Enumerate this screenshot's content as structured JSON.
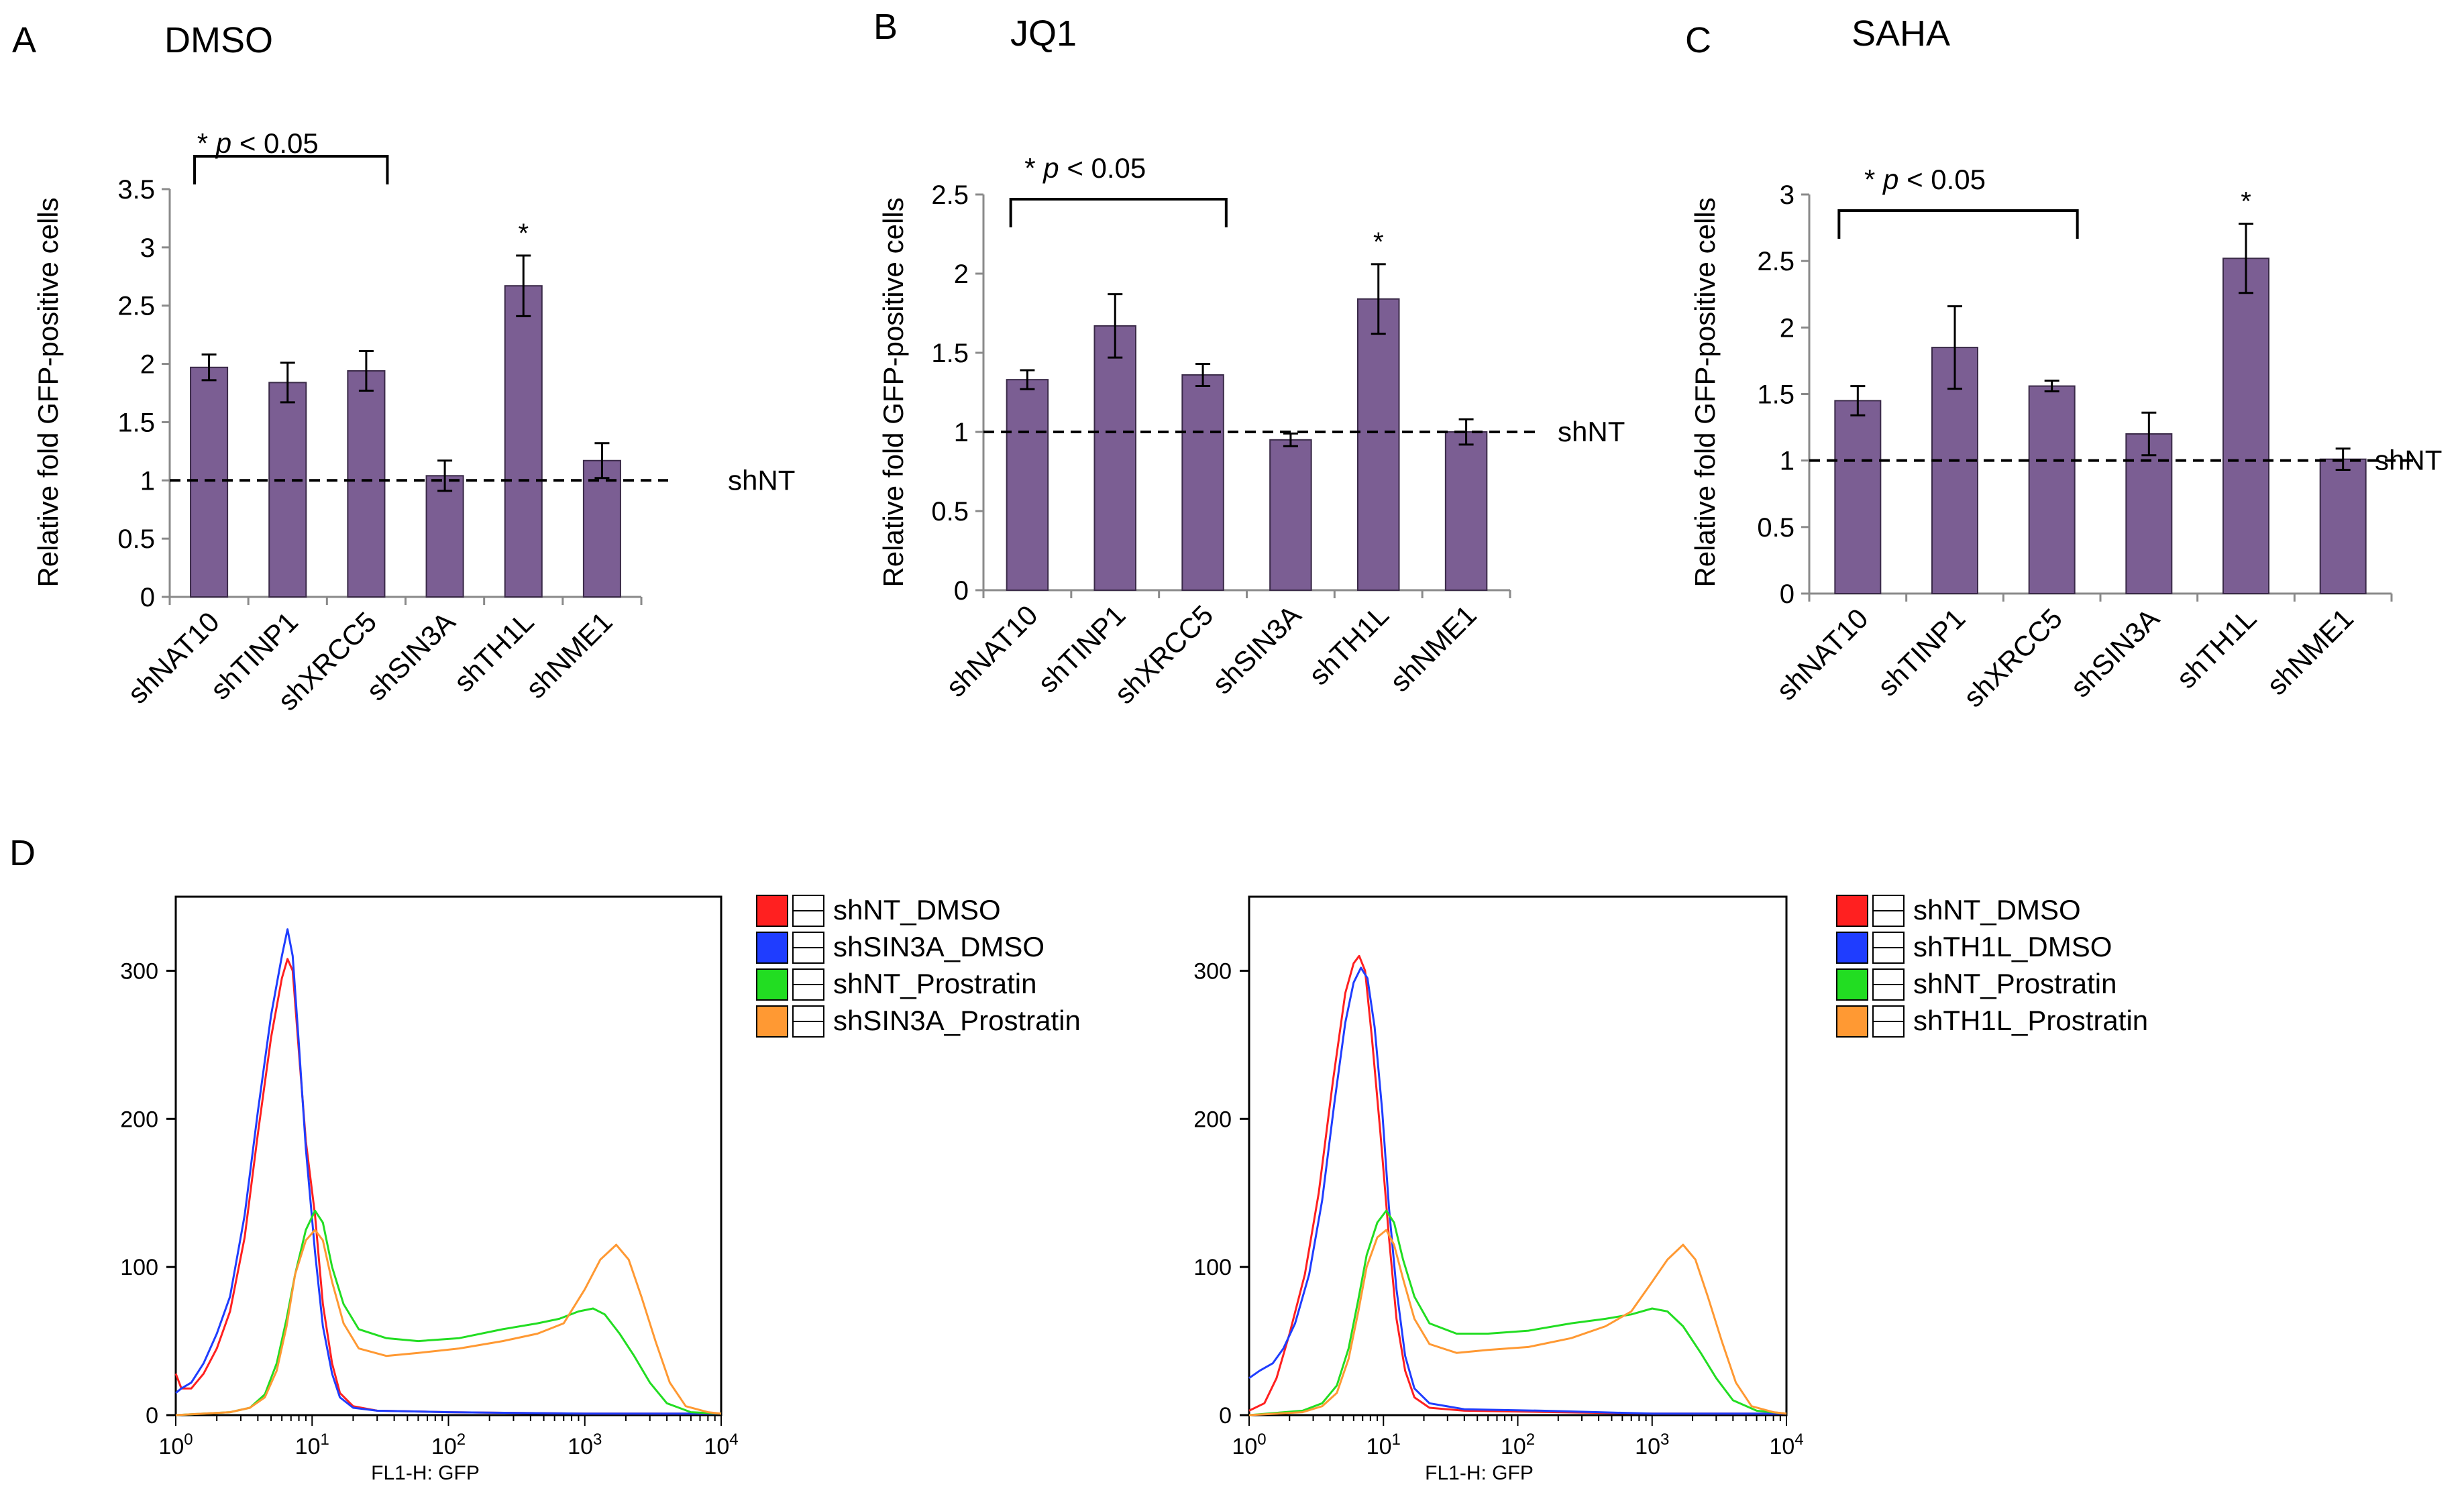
{
  "figure": {
    "panel_d_letter": "D"
  },
  "chart_data": [
    {
      "type": "bar",
      "panel": "A",
      "title": "DMSO",
      "ylabel": "Relative fold GFP-positive cells",
      "xlabel": "",
      "categories": [
        "shNAT10",
        "shTINP1",
        "shXRCC5",
        "shSIN3A",
        "shTH1L",
        "shNME1"
      ],
      "values": [
        1.97,
        1.84,
        1.94,
        1.04,
        2.67,
        1.17
      ],
      "errors": [
        0.11,
        0.17,
        0.17,
        0.13,
        0.26,
        0.15
      ],
      "ylim": [
        0,
        3.5
      ],
      "yticks": [
        0,
        0.5,
        1,
        1.5,
        2,
        2.5,
        3,
        3.5
      ],
      "ytick_labels": [
        "0",
        "0.5",
        "1",
        "1.5",
        "2",
        "2.5",
        "3",
        "3.5"
      ],
      "reference_line": {
        "value": 1,
        "label": "shNT"
      },
      "significance": {
        "from": 0,
        "to": 2,
        "star": "*",
        "italic_p": "p",
        "text": "< 0.05"
      },
      "star_over": [
        {
          "index": 4,
          "label": "*"
        }
      ],
      "bar_color": "#7b5e93"
    },
    {
      "type": "bar",
      "panel": "B",
      "title": "JQ1",
      "ylabel": "Relative fold GFP-positive cells",
      "xlabel": "",
      "categories": [
        "shNAT10",
        "shTINP1",
        "shXRCC5",
        "shSIN3A",
        "shTH1L",
        "shNME1"
      ],
      "values": [
        1.33,
        1.67,
        1.36,
        0.95,
        1.84,
        1.0
      ],
      "errors": [
        0.06,
        0.2,
        0.07,
        0.04,
        0.22,
        0.08
      ],
      "ylim": [
        0,
        2.5
      ],
      "yticks": [
        0,
        0.5,
        1,
        1.5,
        2,
        2.5
      ],
      "ytick_labels": [
        "0",
        "0.5",
        "1",
        "1.5",
        "2",
        "2.5"
      ],
      "reference_line": {
        "value": 1,
        "label": "shNT"
      },
      "significance": {
        "from": 0,
        "to": 2,
        "star": "*",
        "italic_p": "p",
        "text": "< 0.05"
      },
      "star_over": [
        {
          "index": 4,
          "label": "*"
        }
      ],
      "bar_color": "#7b5e93"
    },
    {
      "type": "bar",
      "panel": "C",
      "title": "SAHA",
      "ylabel": "Relative fold GFP-positive cells",
      "xlabel": "",
      "categories": [
        "shNAT10",
        "shTINP1",
        "shXRCC5",
        "shSIN3A",
        "shTH1L",
        "shNME1"
      ],
      "values": [
        1.45,
        1.85,
        1.56,
        1.2,
        2.52,
        1.01
      ],
      "errors": [
        0.11,
        0.31,
        0.04,
        0.16,
        0.26,
        0.08
      ],
      "ylim": [
        0,
        3
      ],
      "yticks": [
        0,
        0.5,
        1,
        1.5,
        2,
        2.5,
        3
      ],
      "ytick_labels": [
        "0",
        "0.5",
        "1",
        "1.5",
        "2",
        "2.5",
        "3"
      ],
      "reference_line": {
        "value": 1,
        "label": "shNT"
      },
      "significance": {
        "from": 0,
        "to": 2,
        "star": "*",
        "italic_p": "p",
        "text": "< 0.05"
      },
      "star_over": [
        {
          "index": 4,
          "label": "*"
        }
      ],
      "bar_color": "#7b5e93"
    },
    {
      "type": "line",
      "panel": "D-left",
      "title": "",
      "xlabel": "FL1-H: GFP",
      "ylabel": "",
      "xscale": "log",
      "xlim": [
        1,
        10000
      ],
      "ylim": [
        0,
        350
      ],
      "xtick_base": "10",
      "xtick_exponents": [
        "0",
        "1",
        "2",
        "3",
        "4"
      ],
      "yticks": [
        0,
        100,
        200,
        300
      ],
      "ytick_labels": [
        "0",
        "100",
        "200",
        "300"
      ],
      "legend": [
        {
          "label": "shNT_DMSO",
          "color": "#ff2020"
        },
        {
          "label": "shSIN3A_DMSO",
          "color": "#1f3dff"
        },
        {
          "label": "shNT_Prostratin",
          "color": "#22dd22"
        },
        {
          "label": "shSIN3A_Prostratin",
          "color": "#ff9933"
        }
      ],
      "series": [
        {
          "name": "shNT_DMSO",
          "color": "#ff2020",
          "points": [
            [
              1,
              28
            ],
            [
              1.1,
              18
            ],
            [
              1.3,
              18
            ],
            [
              1.6,
              28
            ],
            [
              2.0,
              45
            ],
            [
              2.5,
              70
            ],
            [
              3.2,
              120
            ],
            [
              4.0,
              190
            ],
            [
              5.0,
              255
            ],
            [
              6.0,
              295
            ],
            [
              6.6,
              308
            ],
            [
              7.2,
              300
            ],
            [
              8.0,
              245
            ],
            [
              9.0,
              185
            ],
            [
              10.5,
              135
            ],
            [
              12,
              75
            ],
            [
              14,
              35
            ],
            [
              16,
              15
            ],
            [
              20,
              6
            ],
            [
              30,
              3
            ],
            [
              100,
              2
            ],
            [
              1000,
              1
            ],
            [
              10000,
              1
            ]
          ]
        },
        {
          "name": "shSIN3A_DMSO",
          "color": "#1f3dff",
          "points": [
            [
              1,
              15
            ],
            [
              1.1,
              18
            ],
            [
              1.3,
              22
            ],
            [
              1.6,
              35
            ],
            [
              2.0,
              55
            ],
            [
              2.5,
              80
            ],
            [
              3.2,
              135
            ],
            [
              4.0,
              205
            ],
            [
              5.0,
              270
            ],
            [
              6.0,
              310
            ],
            [
              6.6,
              328
            ],
            [
              7.2,
              310
            ],
            [
              8.0,
              250
            ],
            [
              9.0,
              180
            ],
            [
              10.5,
              110
            ],
            [
              12,
              60
            ],
            [
              14,
              28
            ],
            [
              16,
              12
            ],
            [
              20,
              5
            ],
            [
              30,
              3
            ],
            [
              100,
              2
            ],
            [
              1000,
              1
            ],
            [
              10000,
              1
            ]
          ]
        },
        {
          "name": "shNT_Prostratin",
          "color": "#22dd22",
          "points": [
            [
              1,
              0
            ],
            [
              2.5,
              2
            ],
            [
              3.5,
              5
            ],
            [
              4.5,
              14
            ],
            [
              5.5,
              35
            ],
            [
              6.5,
              65
            ],
            [
              7.5,
              95
            ],
            [
              9,
              125
            ],
            [
              10.5,
              138
            ],
            [
              12,
              130
            ],
            [
              14,
              100
            ],
            [
              17,
              75
            ],
            [
              22,
              58
            ],
            [
              35,
              52
            ],
            [
              60,
              50
            ],
            [
              120,
              52
            ],
            [
              250,
              58
            ],
            [
              450,
              62
            ],
            [
              650,
              65
            ],
            [
              900,
              70
            ],
            [
              1150,
              72
            ],
            [
              1400,
              68
            ],
            [
              1800,
              55
            ],
            [
              2300,
              40
            ],
            [
              3000,
              22
            ],
            [
              4000,
              8
            ],
            [
              6000,
              2
            ],
            [
              10000,
              1
            ]
          ]
        },
        {
          "name": "shSIN3A_Prostratin",
          "color": "#ff9933",
          "points": [
            [
              1,
              0
            ],
            [
              2.5,
              2
            ],
            [
              3.5,
              5
            ],
            [
              4.5,
              12
            ],
            [
              5.5,
              30
            ],
            [
              6.5,
              60
            ],
            [
              7.5,
              95
            ],
            [
              9,
              118
            ],
            [
              10.5,
              125
            ],
            [
              12,
              118
            ],
            [
              14,
              90
            ],
            [
              17,
              62
            ],
            [
              22,
              45
            ],
            [
              35,
              40
            ],
            [
              60,
              42
            ],
            [
              120,
              45
            ],
            [
              250,
              50
            ],
            [
              450,
              55
            ],
            [
              700,
              62
            ],
            [
              1000,
              85
            ],
            [
              1300,
              105
            ],
            [
              1700,
              115
            ],
            [
              2100,
              105
            ],
            [
              2600,
              80
            ],
            [
              3300,
              50
            ],
            [
              4200,
              22
            ],
            [
              5500,
              6
            ],
            [
              8000,
              2
            ],
            [
              10000,
              1
            ]
          ]
        }
      ]
    },
    {
      "type": "line",
      "panel": "D-right",
      "title": "",
      "xlabel": "FL1-H: GFP",
      "ylabel": "",
      "xscale": "log",
      "xlim": [
        1,
        10000
      ],
      "ylim": [
        0,
        350
      ],
      "xtick_base": "10",
      "xtick_exponents": [
        "0",
        "1",
        "2",
        "3",
        "4"
      ],
      "yticks": [
        0,
        100,
        200,
        300
      ],
      "ytick_labels": [
        "0",
        "100",
        "200",
        "300"
      ],
      "legend": [
        {
          "label": "shNT_DMSO",
          "color": "#ff2020"
        },
        {
          "label": "shTH1L_DMSO",
          "color": "#1f3dff"
        },
        {
          "label": "shNT_Prostratin",
          "color": "#22dd22"
        },
        {
          "label": "shTH1L_Prostratin",
          "color": "#ff9933"
        }
      ],
      "series": [
        {
          "name": "shNT_DMSO",
          "color": "#ff2020",
          "points": [
            [
              1,
              3
            ],
            [
              1.3,
              8
            ],
            [
              1.6,
              25
            ],
            [
              2.0,
              55
            ],
            [
              2.6,
              95
            ],
            [
              3.3,
              150
            ],
            [
              4.2,
              225
            ],
            [
              5.2,
              285
            ],
            [
              6.0,
              305
            ],
            [
              6.6,
              310
            ],
            [
              7.3,
              300
            ],
            [
              8.2,
              255
            ],
            [
              9.5,
              190
            ],
            [
              11,
              120
            ],
            [
              12.5,
              65
            ],
            [
              14.5,
              30
            ],
            [
              17,
              12
            ],
            [
              22,
              5
            ],
            [
              40,
              3
            ],
            [
              200,
              2
            ],
            [
              1000,
              1
            ],
            [
              10000,
              1
            ]
          ]
        },
        {
          "name": "shTH1L_DMSO",
          "color": "#1f3dff",
          "points": [
            [
              1,
              25
            ],
            [
              1.2,
              30
            ],
            [
              1.5,
              35
            ],
            [
              1.8,
              45
            ],
            [
              2.2,
              62
            ],
            [
              2.8,
              95
            ],
            [
              3.5,
              145
            ],
            [
              4.3,
              210
            ],
            [
              5.2,
              265
            ],
            [
              6.0,
              292
            ],
            [
              6.8,
              302
            ],
            [
              7.6,
              295
            ],
            [
              8.6,
              262
            ],
            [
              9.8,
              205
            ],
            [
              11,
              140
            ],
            [
              12.5,
              85
            ],
            [
              14.5,
              40
            ],
            [
              17,
              18
            ],
            [
              22,
              8
            ],
            [
              40,
              4
            ],
            [
              150,
              3
            ],
            [
              400,
              2
            ],
            [
              1000,
              1
            ],
            [
              10000,
              1
            ]
          ]
        },
        {
          "name": "shNT_Prostratin",
          "color": "#22dd22",
          "points": [
            [
              1,
              0
            ],
            [
              2.5,
              3
            ],
            [
              3.5,
              8
            ],
            [
              4.5,
              20
            ],
            [
              5.5,
              45
            ],
            [
              6.5,
              78
            ],
            [
              7.5,
              108
            ],
            [
              9,
              130
            ],
            [
              10.5,
              138
            ],
            [
              12,
              130
            ],
            [
              14,
              105
            ],
            [
              17,
              80
            ],
            [
              22,
              62
            ],
            [
              35,
              55
            ],
            [
              60,
              55
            ],
            [
              120,
              57
            ],
            [
              250,
              62
            ],
            [
              450,
              65
            ],
            [
              700,
              68
            ],
            [
              1000,
              72
            ],
            [
              1300,
              70
            ],
            [
              1700,
              60
            ],
            [
              2300,
              42
            ],
            [
              3000,
              25
            ],
            [
              4000,
              10
            ],
            [
              6000,
              3
            ],
            [
              10000,
              1
            ]
          ]
        },
        {
          "name": "shTH1L_Prostratin",
          "color": "#ff9933",
          "points": [
            [
              1,
              0
            ],
            [
              2.5,
              2
            ],
            [
              3.5,
              6
            ],
            [
              4.5,
              15
            ],
            [
              5.5,
              38
            ],
            [
              6.5,
              70
            ],
            [
              7.5,
              100
            ],
            [
              9,
              120
            ],
            [
              10.5,
              125
            ],
            [
              12,
              115
            ],
            [
              14,
              92
            ],
            [
              17,
              65
            ],
            [
              22,
              48
            ],
            [
              35,
              42
            ],
            [
              60,
              44
            ],
            [
              120,
              46
            ],
            [
              250,
              52
            ],
            [
              450,
              60
            ],
            [
              700,
              70
            ],
            [
              1000,
              90
            ],
            [
              1300,
              105
            ],
            [
              1700,
              115
            ],
            [
              2100,
              105
            ],
            [
              2600,
              80
            ],
            [
              3300,
              50
            ],
            [
              4200,
              22
            ],
            [
              5500,
              6
            ],
            [
              8000,
              2
            ],
            [
              10000,
              1
            ]
          ]
        }
      ]
    }
  ]
}
